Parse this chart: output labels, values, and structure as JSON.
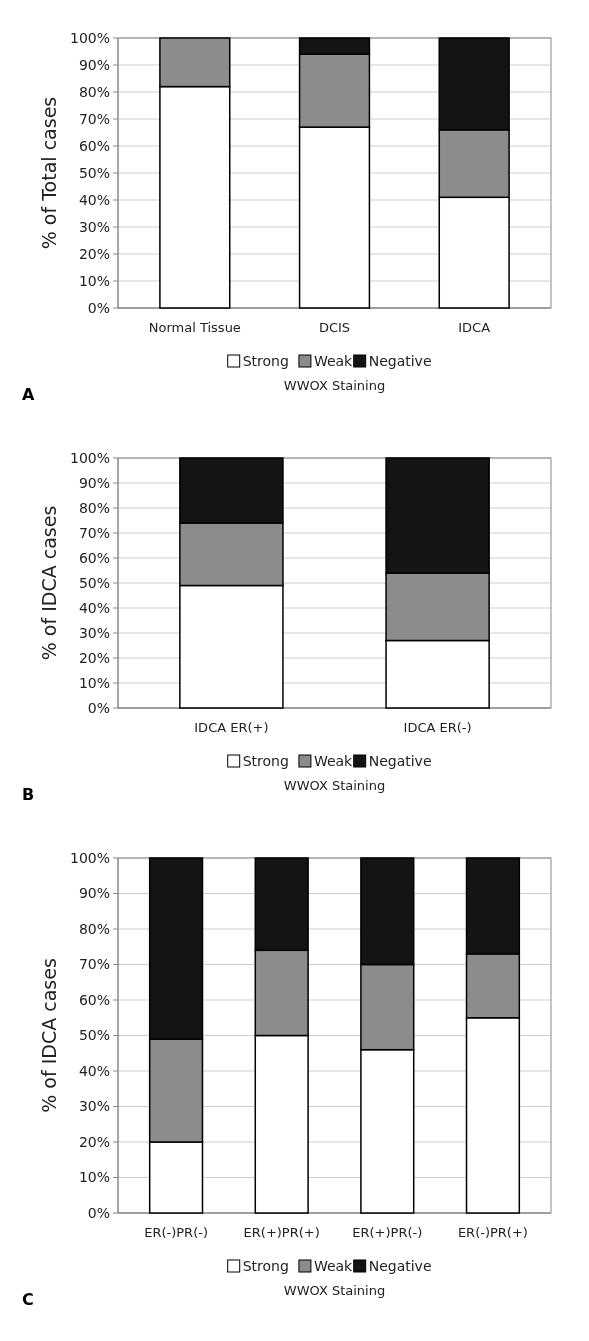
{
  "chart_data": [
    {
      "type": "bar",
      "stacked": true,
      "ylabel": "% of Total cases",
      "xlabel": "WWOX Staining",
      "categories": [
        "Normal Tissue",
        "DCIS",
        "IDCA"
      ],
      "series": [
        {
          "name": "Strong",
          "color": "#ffffff",
          "values": [
            82,
            67,
            41
          ]
        },
        {
          "name": "Weak",
          "color": "#8c8c8c",
          "values": [
            18,
            27,
            25
          ]
        },
        {
          "name": "Negative",
          "color": "#141414",
          "values": [
            0,
            6,
            34
          ]
        }
      ],
      "ylim": [
        0,
        100
      ],
      "yticks": [
        {
          "value": 0,
          "label": "0%"
        },
        {
          "value": 10,
          "label": "10%"
        },
        {
          "value": 20,
          "label": "20%"
        },
        {
          "value": 30,
          "label": "30%"
        },
        {
          "value": 40,
          "label": "40%"
        },
        {
          "value": 50,
          "label": "50%"
        },
        {
          "value": 60,
          "label": "60%"
        },
        {
          "value": 70,
          "label": "70%"
        },
        {
          "value": 80,
          "label": "80%"
        },
        {
          "value": 90,
          "label": "90%"
        },
        {
          "value": 100,
          "label": "100%"
        }
      ],
      "grid": "y",
      "legend": "bottom",
      "annotations": [
        "A"
      ]
    },
    {
      "type": "bar",
      "stacked": true,
      "ylabel": "% of IDCA cases",
      "xlabel": "WWOX Staining",
      "categories": [
        "IDCA ER(+)",
        "IDCA ER(-)"
      ],
      "series": [
        {
          "name": "Strong",
          "color": "#ffffff",
          "values": [
            49,
            27
          ]
        },
        {
          "name": "Weak",
          "color": "#8c8c8c",
          "values": [
            25,
            27
          ]
        },
        {
          "name": "Negative",
          "color": "#141414",
          "values": [
            26,
            46
          ]
        }
      ],
      "ylim": [
        0,
        100
      ],
      "yticks": [
        {
          "value": 0,
          "label": "0%"
        },
        {
          "value": 10,
          "label": "10%"
        },
        {
          "value": 20,
          "label": "20%"
        },
        {
          "value": 30,
          "label": "30%"
        },
        {
          "value": 40,
          "label": "40%"
        },
        {
          "value": 50,
          "label": "50%"
        },
        {
          "value": 60,
          "label": "60%"
        },
        {
          "value": 70,
          "label": "70%"
        },
        {
          "value": 80,
          "label": "80%"
        },
        {
          "value": 90,
          "label": "90%"
        },
        {
          "value": 100,
          "label": "100%"
        }
      ],
      "grid": "y",
      "legend": "bottom",
      "annotations": [
        "B"
      ]
    },
    {
      "type": "bar",
      "stacked": true,
      "ylabel": "% of IDCA cases",
      "xlabel": "WWOX Staining",
      "categories": [
        "ER(-)PR(-)",
        "ER(+)PR(+)",
        "ER(+)PR(-)",
        "ER(-)PR(+)"
      ],
      "series": [
        {
          "name": "Strong",
          "color": "#ffffff",
          "values": [
            20,
            50,
            46,
            55
          ]
        },
        {
          "name": "Weak",
          "color": "#8c8c8c",
          "values": [
            29,
            24,
            24,
            18
          ]
        },
        {
          "name": "Negative",
          "color": "#141414",
          "values": [
            51,
            26,
            30,
            27
          ]
        }
      ],
      "ylim": [
        0,
        100
      ],
      "yticks": [
        {
          "value": 0,
          "label": "0%"
        },
        {
          "value": 10,
          "label": "10%"
        },
        {
          "value": 20,
          "label": "20%"
        },
        {
          "value": 30,
          "label": "30%"
        },
        {
          "value": 40,
          "label": "40%"
        },
        {
          "value": 50,
          "label": "50%"
        },
        {
          "value": 60,
          "label": "60%"
        },
        {
          "value": 70,
          "label": "70%"
        },
        {
          "value": 80,
          "label": "80%"
        },
        {
          "value": 90,
          "label": "90%"
        },
        {
          "value": 100,
          "label": "100%"
        }
      ],
      "grid": "y",
      "legend": "bottom",
      "annotations": [
        "C"
      ]
    }
  ]
}
